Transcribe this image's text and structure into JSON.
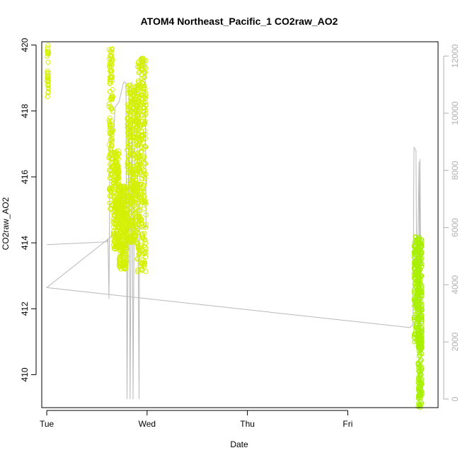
{
  "chart_data": {
    "type": "scatter",
    "title": "ATOM4 Northeast_Pacific_1 CO2raw_AO2",
    "xlabel": "Date",
    "ylabel": "CO2raw_AO2",
    "x_unit": "days",
    "xlim": [
      -0.05,
      3.9
    ],
    "ylim": [
      409.0,
      420.1
    ],
    "x_ticks": [
      {
        "label": "Tue",
        "value": 0
      },
      {
        "label": "Wed",
        "value": 1
      },
      {
        "label": "Thu",
        "value": 2
      },
      {
        "label": "Fri",
        "value": 3
      }
    ],
    "y_ticks": [
      410,
      412,
      414,
      416,
      418,
      420
    ],
    "y2_ticks": [
      0,
      2000,
      4000,
      6000,
      8000,
      10000,
      12000
    ],
    "y2lim": [
      -300,
      12500
    ],
    "points_color": "#d4f000",
    "points_color_late": "#a8f000",
    "line_color": "#b8b8b8",
    "axis_color": "#000000",
    "y2_color": "#b0b0b0",
    "series": [
      {
        "name": "",
        "axis": "left",
        "kind": "points",
        "clusters": [
          {
            "x_from": 0.0,
            "x_to": 0.02,
            "y_from": 418.4,
            "y_to": 420.0,
            "n": 30
          },
          {
            "x_from": 0.62,
            "x_to": 0.66,
            "y_from": 415.0,
            "y_to": 419.9,
            "n": 120
          },
          {
            "x_from": 0.66,
            "x_to": 0.72,
            "y_from": 413.8,
            "y_to": 416.8,
            "n": 200
          },
          {
            "x_from": 0.72,
            "x_to": 0.8,
            "y_from": 413.2,
            "y_to": 415.8,
            "n": 260
          },
          {
            "x_from": 0.8,
            "x_to": 0.9,
            "y_from": 414.0,
            "y_to": 418.8,
            "n": 300
          },
          {
            "x_from": 0.9,
            "x_to": 0.99,
            "y_from": 413.1,
            "y_to": 419.6,
            "n": 300
          },
          {
            "x_from": 3.66,
            "x_to": 3.74,
            "y_from": 410.8,
            "y_to": 414.2,
            "n": 320
          },
          {
            "x_from": 3.7,
            "x_to": 3.74,
            "y_from": 409.0,
            "y_to": 411.2,
            "n": 120
          }
        ]
      },
      {
        "name": "",
        "axis": "right",
        "kind": "line",
        "x": [
          0.0,
          0.0,
          0.6,
          0.61,
          0.62,
          0.63,
          0.67,
          0.68,
          0.72,
          0.76,
          0.77,
          0.79,
          0.8,
          0.82,
          0.83,
          0.85,
          0.86,
          0.88,
          0.9,
          0.92,
          0.93,
          0.94,
          0.95,
          0.96,
          0.98,
          0.99,
          0.72,
          0.0,
          3.62,
          3.65,
          3.66,
          3.68,
          3.69,
          3.71,
          3.72,
          3.72,
          3.73
        ],
        "y": [
          5400,
          5400,
          5500,
          5600,
          3500,
          9200,
          9400,
          10200,
          10400,
          11000,
          11100,
          11050,
          0,
          11000,
          0,
          11100,
          0,
          10900,
          11000,
          0,
          11500,
          12000,
          11800,
          11600,
          11900,
          6000,
          5900,
          3900,
          2500,
          2600,
          8800,
          8700,
          3000,
          8300,
          2600,
          8400,
          2500
        ]
      }
    ]
  }
}
